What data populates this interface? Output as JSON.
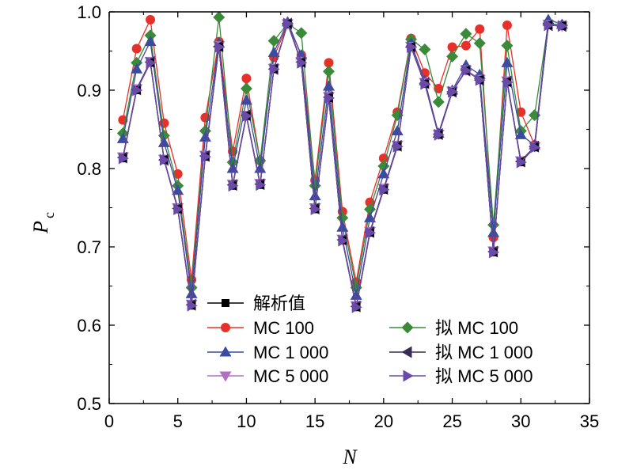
{
  "chart_data": {
    "type": "line",
    "xlabel": "N",
    "ylabel_main": "P",
    "ylabel_sub": "c",
    "xlim": [
      0,
      35
    ],
    "ylim": [
      0.5,
      1.0
    ],
    "xticks": [
      "0",
      "5",
      "10",
      "15",
      "20",
      "25",
      "30",
      "35"
    ],
    "yticks": [
      "0.5",
      "0.6",
      "0.7",
      "0.8",
      "0.9",
      "1.0"
    ],
    "grid": false,
    "legend_placement": "bottom-center",
    "x": [
      1,
      2,
      3,
      4,
      5,
      6,
      7,
      8,
      9,
      10,
      11,
      12,
      13,
      14,
      15,
      16,
      17,
      18,
      19,
      20,
      21,
      22,
      23,
      24,
      25,
      26,
      27,
      28,
      29,
      30,
      31,
      32,
      33
    ],
    "series": [
      {
        "name": "解析值",
        "color": "#000000",
        "marker": "square",
        "values": [
          0.813,
          0.9,
          0.935,
          0.811,
          0.748,
          0.625,
          0.815,
          0.955,
          0.778,
          0.867,
          0.779,
          0.927,
          0.985,
          0.935,
          0.748,
          0.89,
          0.708,
          0.623,
          0.718,
          0.773,
          0.828,
          0.955,
          0.908,
          0.843,
          0.898,
          0.925,
          0.913,
          0.693,
          0.91,
          0.808,
          0.827,
          0.983,
          0.982
        ]
      },
      {
        "name": "MC 100",
        "color": "#e8302a",
        "marker": "circle",
        "values": [
          0.862,
          0.953,
          0.99,
          0.858,
          0.793,
          0.658,
          0.865,
          0.962,
          0.822,
          0.915,
          0.81,
          0.942,
          0.985,
          0.945,
          0.785,
          0.935,
          0.745,
          0.655,
          0.757,
          0.813,
          0.872,
          0.966,
          0.922,
          0.902,
          0.955,
          0.957,
          0.978,
          0.712,
          0.983,
          0.872,
          0.83,
          0.985,
          0.983
        ]
      },
      {
        "name": "MC 1 000",
        "color": "#3a4ba0",
        "marker": "triangle-up",
        "values": [
          0.838,
          0.927,
          0.962,
          0.833,
          0.772,
          0.64,
          0.84,
          0.96,
          0.8,
          0.887,
          0.8,
          0.948,
          0.987,
          0.945,
          0.765,
          0.905,
          0.725,
          0.638,
          0.737,
          0.793,
          0.848,
          0.96,
          0.912,
          0.845,
          0.9,
          0.932,
          0.92,
          0.718,
          0.935,
          0.843,
          0.83,
          0.99,
          0.984
        ]
      },
      {
        "name": "MC 5 000",
        "color": "#b070c0",
        "marker": "triangle-down",
        "values": [
          0.815,
          0.902,
          0.937,
          0.812,
          0.75,
          0.627,
          0.817,
          0.957,
          0.78,
          0.868,
          0.781,
          0.928,
          0.985,
          0.937,
          0.75,
          0.892,
          0.71,
          0.625,
          0.72,
          0.775,
          0.83,
          0.956,
          0.91,
          0.844,
          0.899,
          0.926,
          0.914,
          0.695,
          0.912,
          0.81,
          0.828,
          0.984,
          0.982
        ]
      },
      {
        "name": "拟 MC 100",
        "color": "#3a8a3a",
        "marker": "diamond",
        "values": [
          0.845,
          0.935,
          0.97,
          0.842,
          0.778,
          0.648,
          0.848,
          0.993,
          0.808,
          0.902,
          0.81,
          0.963,
          0.985,
          0.973,
          0.778,
          0.924,
          0.737,
          0.648,
          0.748,
          0.803,
          0.868,
          0.965,
          0.952,
          0.885,
          0.943,
          0.972,
          0.96,
          0.728,
          0.957,
          0.848,
          0.868,
          0.985,
          0.983
        ]
      },
      {
        "name": "拟 MC 1 000",
        "color": "#3a2a55",
        "marker": "triangle-left",
        "values": [
          0.814,
          0.901,
          0.936,
          0.811,
          0.749,
          0.626,
          0.816,
          0.956,
          0.779,
          0.868,
          0.78,
          0.927,
          0.985,
          0.936,
          0.749,
          0.891,
          0.709,
          0.624,
          0.719,
          0.774,
          0.829,
          0.955,
          0.909,
          0.844,
          0.898,
          0.925,
          0.913,
          0.694,
          0.911,
          0.809,
          0.828,
          0.983,
          0.982
        ]
      },
      {
        "name": "拟 MC 5 000",
        "color": "#6a4aa8",
        "marker": "triangle-right",
        "values": [
          0.813,
          0.9,
          0.935,
          0.811,
          0.748,
          0.625,
          0.815,
          0.955,
          0.778,
          0.867,
          0.779,
          0.927,
          0.985,
          0.935,
          0.748,
          0.89,
          0.708,
          0.623,
          0.718,
          0.773,
          0.828,
          0.955,
          0.908,
          0.843,
          0.898,
          0.925,
          0.913,
          0.693,
          0.91,
          0.808,
          0.827,
          0.983,
          0.982
        ]
      }
    ]
  }
}
